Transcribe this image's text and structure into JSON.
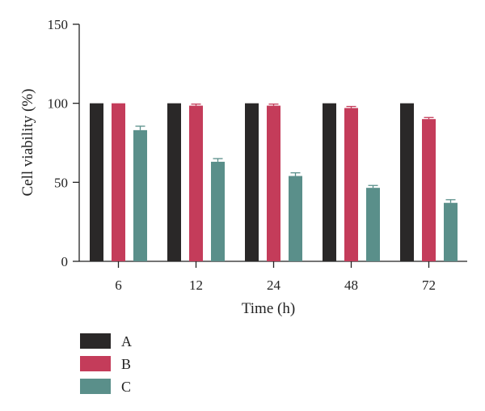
{
  "chart_data": {
    "type": "bar",
    "title": "",
    "xlabel": "Time (h)",
    "ylabel": "Cell viability (%)",
    "ylim": [
      0,
      150
    ],
    "yticks": [
      0,
      50,
      100,
      150
    ],
    "categories": [
      "6",
      "12",
      "24",
      "48",
      "72"
    ],
    "series": [
      {
        "name": "A",
        "color": "#2a2828",
        "values": [
          100,
          100,
          100,
          100,
          100
        ],
        "errors": [
          0,
          0,
          0,
          0,
          0
        ]
      },
      {
        "name": "B",
        "color": "#c43c5a",
        "values": [
          100,
          98.5,
          98.5,
          97,
          90
        ],
        "errors": [
          0,
          1,
          1,
          1,
          1
        ]
      },
      {
        "name": "C",
        "color": "#5a8f8a",
        "values": [
          83,
          63,
          54,
          46.5,
          37
        ],
        "errors": [
          2.5,
          2,
          2,
          1.5,
          2
        ]
      }
    ],
    "grid": false,
    "legend_position": "bottom-left"
  }
}
